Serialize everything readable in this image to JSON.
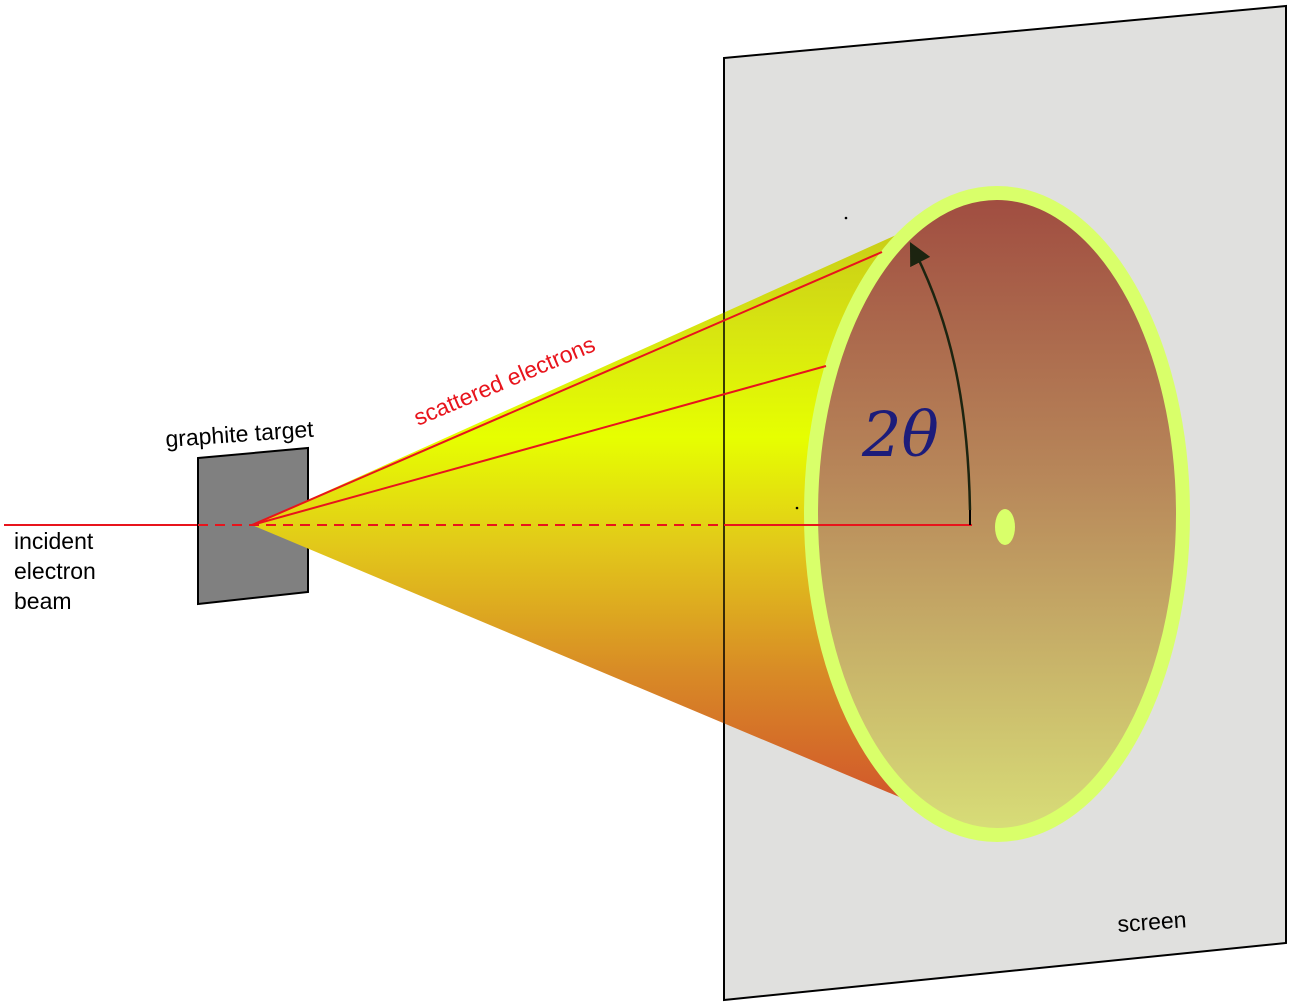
{
  "labels": {
    "incident_line1": "incident",
    "incident_line2": "electron",
    "incident_line3": "beam",
    "target": "graphite target",
    "scattered": "scattered electrons",
    "angle": "2θ",
    "screen": "screen"
  },
  "colors": {
    "beam": "#e8141c",
    "target_fill": "#808080",
    "screen_fill": "#e0e0de",
    "cone_bright": "#e6ff00",
    "cone_dark": "#d4502a",
    "ring": "#d9ff6a",
    "disk_fill": "#b0704a",
    "angle_text": "#1c1c7a",
    "label_text": "#000000",
    "scattered_text": "#e8141c"
  }
}
